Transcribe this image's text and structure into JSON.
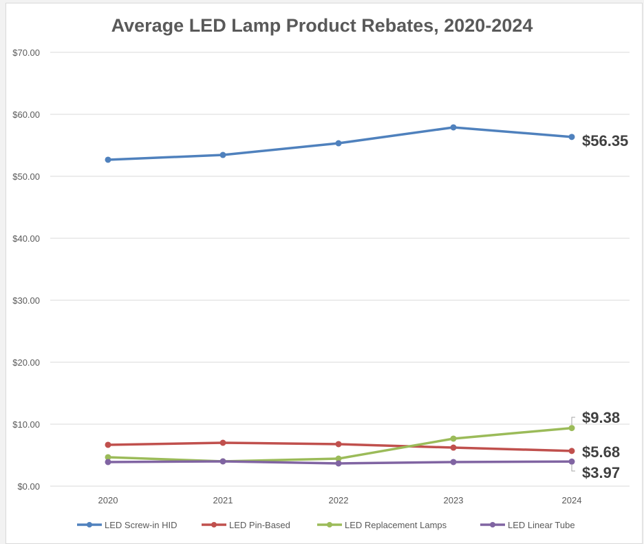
{
  "chart_data": {
    "type": "line",
    "title": "Average LED Lamp Product Rebates, 2020-2024",
    "xlabel": "",
    "ylabel": "",
    "x": [
      "2020",
      "2021",
      "2022",
      "2023",
      "2024"
    ],
    "ylim": [
      0,
      70
    ],
    "yticks": [
      0,
      10,
      20,
      30,
      40,
      50,
      60,
      70
    ],
    "ytick_labels": [
      "$0.00",
      "$10.00",
      "$20.00",
      "$30.00",
      "$40.00",
      "$50.00",
      "$60.00",
      "$70.00"
    ],
    "grid": true,
    "legend_position": "bottom",
    "series": [
      {
        "name": "LED Screw-in HID",
        "color": "#4f81bd",
        "values": [
          52.67,
          53.44,
          55.33,
          57.89,
          56.35
        ],
        "end_label": "$56.35"
      },
      {
        "name": "LED Pin-Based",
        "color": "#c0504d",
        "values": [
          6.67,
          7.0,
          6.78,
          6.22,
          5.68
        ],
        "end_label": "$5.68"
      },
      {
        "name": "LED Replacement Lamps",
        "color": "#9bbb59",
        "values": [
          4.67,
          4.0,
          4.44,
          7.67,
          9.38
        ],
        "end_label": "$9.38"
      },
      {
        "name": "LED Linear Tube",
        "color": "#8064a2",
        "values": [
          3.89,
          4.0,
          3.67,
          3.89,
          3.97
        ],
        "end_label": "$3.97"
      }
    ]
  }
}
